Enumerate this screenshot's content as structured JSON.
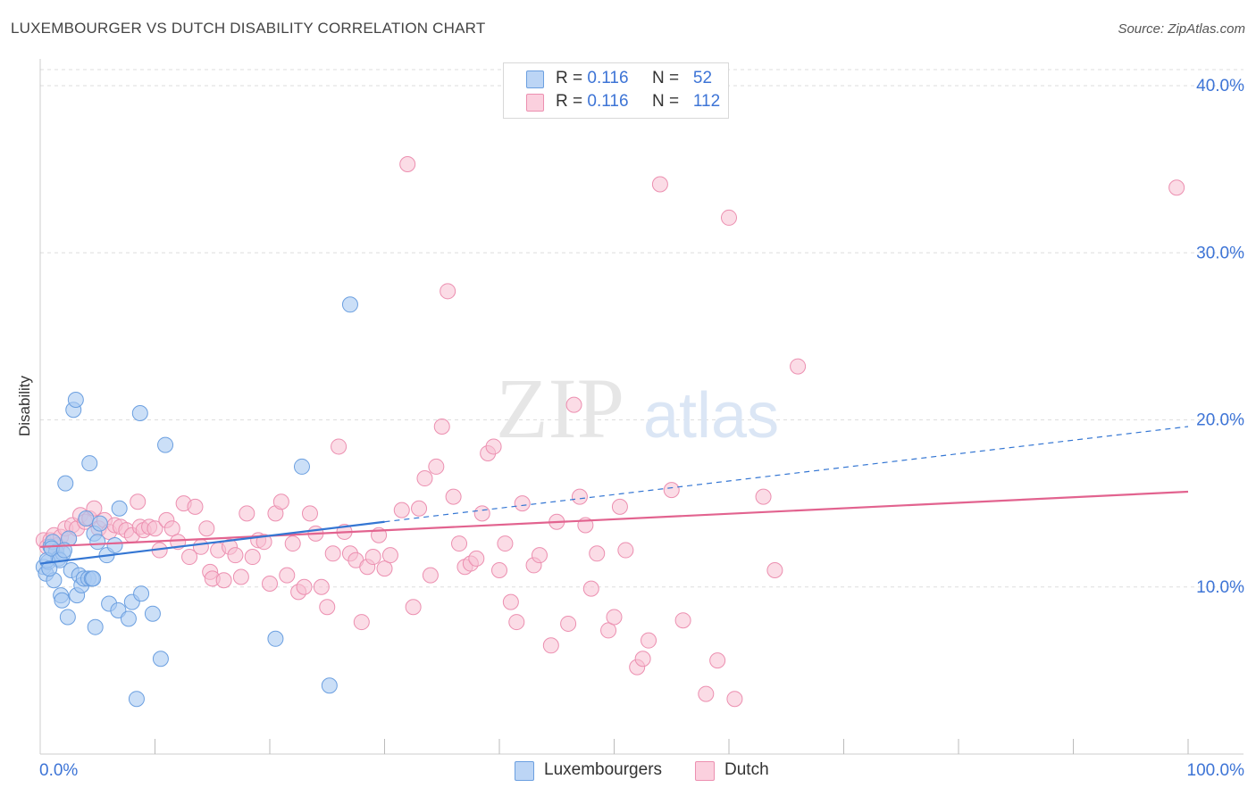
{
  "title": "LUXEMBOURGER VS DUTCH DISABILITY CORRELATION CHART",
  "source": "Source: ZipAtlas.com",
  "watermark": {
    "zip": "ZIP",
    "atlas": "atlas"
  },
  "legend": {
    "rows": [
      {
        "r_label": "R =",
        "r_value": "0.116",
        "n_label": "N =",
        "n_value": "52"
      },
      {
        "r_label": "R =",
        "r_value": "0.116",
        "n_label": "N =",
        "n_value": "112"
      }
    ]
  },
  "bottom_legend": {
    "luxembourgers": "Luxembourgers",
    "dutch": "Dutch"
  },
  "colors": {
    "blue_fill": "#a9c9f2",
    "blue_stroke": "#6b9fe0",
    "blue_line": "#3476d3",
    "pink_fill": "#f7bfd2",
    "pink_stroke": "#ec8fb0",
    "pink_line": "#e2638f",
    "axis_text": "#3d74d6",
    "grid": "#dddddd"
  },
  "chart_data": {
    "type": "scatter",
    "title": "LUXEMBOURGER VS DUTCH DISABILITY CORRELATION CHART",
    "xlabel": "",
    "ylabel": "Disability",
    "xlim": [
      0,
      100
    ],
    "ylim": [
      0,
      40
    ],
    "x_tick_labels": [
      "0.0%",
      "100.0%"
    ],
    "y_ticks": [
      10,
      20,
      30,
      40
    ],
    "y_tick_labels": [
      "10.0%",
      "20.0%",
      "30.0%",
      "40.0%"
    ],
    "grid": true,
    "series": [
      {
        "name": "Luxembourgers",
        "R": 0.116,
        "N": 52,
        "trend": {
          "x0": 0,
          "y0": 11.4,
          "x1": 30,
          "y1": 13.9,
          "dashed_to_x": 100,
          "dashed_to_y": 19.6
        },
        "points": [
          [
            0.3,
            11.2
          ],
          [
            0.5,
            10.8
          ],
          [
            0.7,
            11.5
          ],
          [
            0.9,
            12.4
          ],
          [
            1.1,
            12.7
          ],
          [
            1.2,
            10.4
          ],
          [
            1.4,
            12.1
          ],
          [
            1.6,
            11.7
          ],
          [
            1.8,
            9.5
          ],
          [
            1.9,
            9.2
          ],
          [
            2.0,
            12.0
          ],
          [
            2.2,
            16.2
          ],
          [
            2.4,
            8.2
          ],
          [
            2.5,
            12.9
          ],
          [
            2.7,
            11.0
          ],
          [
            2.9,
            20.6
          ],
          [
            3.1,
            21.2
          ],
          [
            3.2,
            9.5
          ],
          [
            3.4,
            10.7
          ],
          [
            3.6,
            10.1
          ],
          [
            3.8,
            10.5
          ],
          [
            4.0,
            14.1
          ],
          [
            4.2,
            10.5
          ],
          [
            4.3,
            17.4
          ],
          [
            4.5,
            10.5
          ],
          [
            4.6,
            10.5
          ],
          [
            4.7,
            13.2
          ],
          [
            4.8,
            7.6
          ],
          [
            5.0,
            12.7
          ],
          [
            5.2,
            13.8
          ],
          [
            5.8,
            11.9
          ],
          [
            6.0,
            9.0
          ],
          [
            6.5,
            12.5
          ],
          [
            6.8,
            8.6
          ],
          [
            6.9,
            14.7
          ],
          [
            7.7,
            8.1
          ],
          [
            8.0,
            9.1
          ],
          [
            8.4,
            3.3
          ],
          [
            8.7,
            20.4
          ],
          [
            8.8,
            9.6
          ],
          [
            9.8,
            8.4
          ],
          [
            10.5,
            5.7
          ],
          [
            10.9,
            18.5
          ],
          [
            20.5,
            6.9
          ],
          [
            22.8,
            17.2
          ],
          [
            25.2,
            4.1
          ],
          [
            27.0,
            26.9
          ],
          [
            0.6,
            11.6
          ],
          [
            1.0,
            12.3
          ],
          [
            1.7,
            11.6
          ],
          [
            2.1,
            12.2
          ],
          [
            0.8,
            11.1
          ]
        ]
      },
      {
        "name": "Dutch",
        "R": 0.116,
        "N": 112,
        "trend": {
          "x0": 0,
          "y0": 12.4,
          "x1": 100,
          "y1": 15.7
        },
        "points": [
          [
            0.3,
            12.8
          ],
          [
            0.6,
            12.4
          ],
          [
            0.9,
            12.8
          ],
          [
            1.2,
            13.1
          ],
          [
            1.5,
            12.5
          ],
          [
            1.8,
            13.0
          ],
          [
            2.2,
            13.5
          ],
          [
            2.5,
            12.9
          ],
          [
            2.8,
            13.7
          ],
          [
            3.2,
            13.5
          ],
          [
            3.5,
            14.3
          ],
          [
            3.9,
            13.9
          ],
          [
            4.3,
            14.1
          ],
          [
            4.7,
            14.7
          ],
          [
            5.1,
            13.5
          ],
          [
            5.6,
            14.0
          ],
          [
            6.0,
            13.3
          ],
          [
            6.5,
            13.7
          ],
          [
            7.0,
            13.6
          ],
          [
            7.5,
            13.4
          ],
          [
            8.0,
            13.1
          ],
          [
            8.5,
            15.1
          ],
          [
            8.7,
            13.6
          ],
          [
            9.0,
            13.4
          ],
          [
            9.5,
            13.6
          ],
          [
            10.0,
            13.5
          ],
          [
            10.4,
            12.2
          ],
          [
            11.0,
            14.0
          ],
          [
            11.5,
            13.5
          ],
          [
            12.0,
            12.7
          ],
          [
            12.5,
            15.0
          ],
          [
            13.0,
            11.8
          ],
          [
            13.5,
            14.8
          ],
          [
            14.0,
            12.4
          ],
          [
            14.5,
            13.5
          ],
          [
            14.8,
            10.9
          ],
          [
            15.0,
            10.5
          ],
          [
            15.5,
            12.2
          ],
          [
            16.0,
            10.4
          ],
          [
            16.5,
            12.4
          ],
          [
            17.0,
            11.9
          ],
          [
            17.5,
            10.6
          ],
          [
            18.0,
            14.4
          ],
          [
            18.5,
            11.8
          ],
          [
            19.0,
            12.8
          ],
          [
            19.5,
            12.7
          ],
          [
            20.0,
            10.2
          ],
          [
            20.5,
            14.4
          ],
          [
            21.0,
            15.1
          ],
          [
            21.5,
            10.7
          ],
          [
            22.0,
            12.6
          ],
          [
            22.5,
            9.7
          ],
          [
            23.0,
            10.0
          ],
          [
            23.5,
            14.4
          ],
          [
            24.0,
            13.2
          ],
          [
            24.5,
            10.0
          ],
          [
            25.0,
            8.8
          ],
          [
            25.5,
            12.0
          ],
          [
            26.0,
            18.4
          ],
          [
            26.5,
            13.3
          ],
          [
            27.0,
            12.0
          ],
          [
            27.5,
            11.6
          ],
          [
            28.0,
            7.9
          ],
          [
            28.5,
            11.2
          ],
          [
            29.0,
            11.8
          ],
          [
            29.5,
            13.1
          ],
          [
            30.0,
            11.1
          ],
          [
            30.5,
            11.9
          ],
          [
            31.5,
            14.6
          ],
          [
            32.0,
            35.3
          ],
          [
            32.5,
            8.8
          ],
          [
            33.0,
            14.7
          ],
          [
            33.5,
            16.5
          ],
          [
            34.0,
            10.7
          ],
          [
            34.5,
            17.2
          ],
          [
            35.0,
            19.6
          ],
          [
            35.5,
            27.7
          ],
          [
            36.0,
            15.4
          ],
          [
            36.5,
            12.6
          ],
          [
            37.0,
            11.2
          ],
          [
            37.5,
            11.4
          ],
          [
            38.0,
            11.7
          ],
          [
            38.5,
            14.4
          ],
          [
            39.0,
            18.0
          ],
          [
            39.5,
            18.4
          ],
          [
            40.0,
            11.0
          ],
          [
            40.5,
            12.6
          ],
          [
            41.0,
            9.1
          ],
          [
            41.5,
            7.9
          ],
          [
            42.0,
            15.0
          ],
          [
            43.0,
            11.3
          ],
          [
            43.5,
            11.9
          ],
          [
            45.0,
            13.9
          ],
          [
            46.0,
            7.8
          ],
          [
            46.5,
            20.9
          ],
          [
            47.0,
            15.4
          ],
          [
            47.5,
            13.7
          ],
          [
            48.0,
            9.9
          ],
          [
            48.5,
            12.0
          ],
          [
            49.5,
            7.4
          ],
          [
            50.0,
            8.2
          ],
          [
            50.5,
            14.8
          ],
          [
            51.0,
            12.2
          ],
          [
            52.0,
            5.2
          ],
          [
            52.5,
            5.7
          ],
          [
            53.0,
            6.8
          ],
          [
            54.0,
            34.1
          ],
          [
            55.0,
            15.8
          ],
          [
            58.0,
            3.6
          ],
          [
            59.0,
            5.6
          ],
          [
            60.0,
            32.1
          ],
          [
            60.5,
            3.3
          ],
          [
            63.0,
            15.4
          ],
          [
            64.0,
            11.0
          ],
          [
            66.0,
            23.2
          ],
          [
            99.0,
            33.9
          ],
          [
            56.0,
            8.0
          ],
          [
            44.5,
            6.5
          ]
        ]
      }
    ]
  }
}
